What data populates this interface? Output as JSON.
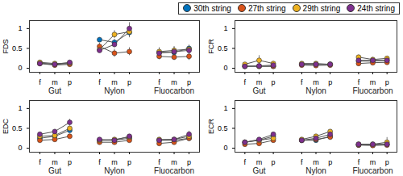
{
  "chart_data": [
    {
      "type": "line",
      "y_label": "FDS",
      "marker": "circle",
      "legend": "top right",
      "groups": [
        "Gut",
        "Nylon",
        "Fluocarbon"
      ],
      "categories": [
        "f",
        "m",
        "p",
        "f",
        "m",
        "p",
        "f",
        "m",
        "p"
      ],
      "ylim": [
        -0.1,
        1.2
      ],
      "yticks": [
        0,
        0.5,
        1
      ],
      "series": [
        {
          "name": "30th string",
          "color": "#0072bd",
          "values": [
            0.13,
            0.1,
            0.12,
            0.72,
            0.65,
            0.9,
            0.4,
            0.4,
            0.5
          ],
          "errors": [
            0.03,
            0.03,
            0.03,
            0.05,
            0.08,
            0.1,
            0.08,
            0.1,
            0.08
          ]
        },
        {
          "name": "27th string",
          "color": "#d95319",
          "values": [
            0.12,
            0.08,
            0.1,
            0.55,
            0.38,
            0.42,
            0.3,
            0.28,
            0.3
          ],
          "errors": [
            0.03,
            0.03,
            0.03,
            0.08,
            0.1,
            0.1,
            0.08,
            0.08,
            0.1
          ]
        },
        {
          "name": "29th string",
          "color": "#edb120",
          "values": [
            0.15,
            0.12,
            0.13,
            0.47,
            0.85,
            0.92,
            0.42,
            0.45,
            0.48
          ],
          "errors": [
            0.03,
            0.03,
            0.04,
            0.08,
            0.1,
            0.15,
            0.1,
            0.1,
            0.1
          ]
        },
        {
          "name": "24th string",
          "color": "#7e2f8e",
          "values": [
            0.12,
            0.1,
            0.15,
            0.45,
            0.6,
            1.0,
            0.38,
            0.42,
            0.45
          ],
          "errors": [
            0.03,
            0.03,
            0.03,
            0.06,
            0.08,
            0.15,
            0.08,
            0.1,
            0.1
          ]
        }
      ]
    },
    {
      "type": "line",
      "y_label": "FCR",
      "marker": "circle",
      "groups": [
        "Gut",
        "Nylon",
        "Fluocarbon"
      ],
      "categories": [
        "f",
        "m",
        "p",
        "f",
        "m",
        "p",
        "f",
        "m",
        "p"
      ],
      "ylim": [
        -0.1,
        1.2
      ],
      "yticks": [
        0,
        0.5,
        1
      ],
      "series": [
        {
          "name": "30th string",
          "color": "#0072bd",
          "values": [
            0.05,
            0.05,
            0.05,
            0.1,
            0.1,
            0.1,
            0.18,
            0.18,
            0.2
          ],
          "errors": [
            0.02,
            0.02,
            0.02,
            0.03,
            0.03,
            0.03,
            0.04,
            0.04,
            0.05
          ]
        },
        {
          "name": "27th string",
          "color": "#d95319",
          "values": [
            0.05,
            0.05,
            0.05,
            0.08,
            0.07,
            0.08,
            0.12,
            0.14,
            0.15
          ],
          "errors": [
            0.02,
            0.02,
            0.02,
            0.03,
            0.03,
            0.03,
            0.04,
            0.04,
            0.05
          ]
        },
        {
          "name": "29th string",
          "color": "#edb120",
          "values": [
            0.1,
            0.2,
            0.12,
            0.12,
            0.12,
            0.1,
            0.28,
            0.22,
            0.25
          ],
          "errors": [
            0.04,
            0.12,
            0.05,
            0.03,
            0.03,
            0.03,
            0.05,
            0.05,
            0.05
          ]
        },
        {
          "name": "24th string",
          "color": "#7e2f8e",
          "values": [
            0.05,
            0.06,
            0.08,
            0.1,
            0.1,
            0.1,
            0.2,
            0.2,
            0.2
          ],
          "errors": [
            0.02,
            0.02,
            0.03,
            0.03,
            0.03,
            0.03,
            0.05,
            0.05,
            0.05
          ]
        }
      ]
    },
    {
      "type": "line",
      "y_label": "EDC",
      "marker": "circle",
      "groups": [
        "Gut",
        "Nylon",
        "Fluocarbon"
      ],
      "categories": [
        "f",
        "m",
        "p",
        "f",
        "m",
        "p",
        "f",
        "m",
        "p"
      ],
      "ylim": [
        -0.1,
        1.2
      ],
      "yticks": [
        0,
        0.5,
        1
      ],
      "series": [
        {
          "name": "30th string",
          "color": "#0072bd",
          "values": [
            0.25,
            0.3,
            0.45,
            0.2,
            0.2,
            0.25,
            0.2,
            0.2,
            0.25
          ],
          "errors": [
            0.04,
            0.05,
            0.06,
            0.03,
            0.03,
            0.04,
            0.03,
            0.03,
            0.05
          ]
        },
        {
          "name": "27th string",
          "color": "#d95319",
          "values": [
            0.2,
            0.22,
            0.3,
            0.15,
            0.15,
            0.2,
            0.12,
            0.15,
            0.25
          ],
          "errors": [
            0.04,
            0.04,
            0.05,
            0.03,
            0.03,
            0.04,
            0.03,
            0.03,
            0.05
          ]
        },
        {
          "name": "29th string",
          "color": "#edb120",
          "values": [
            0.3,
            0.32,
            0.5,
            0.2,
            0.22,
            0.28,
            0.22,
            0.22,
            0.3
          ],
          "errors": [
            0.04,
            0.05,
            0.06,
            0.03,
            0.03,
            0.04,
            0.03,
            0.03,
            0.06
          ]
        },
        {
          "name": "24th string",
          "color": "#7e2f8e",
          "values": [
            0.35,
            0.42,
            0.65,
            0.22,
            0.2,
            0.3,
            0.2,
            0.22,
            0.35
          ],
          "errors": [
            0.04,
            0.05,
            0.08,
            0.03,
            0.03,
            0.04,
            0.03,
            0.04,
            0.08
          ]
        }
      ]
    },
    {
      "type": "line",
      "y_label": "ECR",
      "marker": "circle",
      "groups": [
        "Gut",
        "Nylon",
        "Fluocarbon"
      ],
      "categories": [
        "f",
        "m",
        "p",
        "f",
        "m",
        "p",
        "f",
        "m",
        "p"
      ],
      "ylim": [
        -0.1,
        1.2
      ],
      "yticks": [
        0,
        0.5,
        1
      ],
      "series": [
        {
          "name": "30th string",
          "color": "#0072bd",
          "values": [
            0.15,
            0.2,
            0.3,
            0.2,
            0.2,
            0.3,
            0.08,
            0.08,
            0.1
          ],
          "errors": [
            0.03,
            0.04,
            0.05,
            0.03,
            0.03,
            0.04,
            0.02,
            0.02,
            0.04
          ]
        },
        {
          "name": "27th string",
          "color": "#d95319",
          "values": [
            0.1,
            0.12,
            0.2,
            0.2,
            0.22,
            0.28,
            0.08,
            0.07,
            0.08
          ],
          "errors": [
            0.03,
            0.03,
            0.04,
            0.03,
            0.03,
            0.04,
            0.02,
            0.02,
            0.03
          ]
        },
        {
          "name": "29th string",
          "color": "#edb120",
          "values": [
            0.15,
            0.2,
            0.25,
            0.22,
            0.3,
            0.42,
            0.1,
            0.1,
            0.15
          ],
          "errors": [
            0.03,
            0.04,
            0.05,
            0.03,
            0.04,
            0.05,
            0.02,
            0.03,
            0.12
          ]
        },
        {
          "name": "24th string",
          "color": "#7e2f8e",
          "values": [
            0.15,
            0.22,
            0.35,
            0.2,
            0.25,
            0.35,
            0.1,
            0.1,
            0.1
          ],
          "errors": [
            0.03,
            0.04,
            0.05,
            0.03,
            0.04,
            0.05,
            0.02,
            0.02,
            0.04
          ]
        }
      ]
    }
  ]
}
